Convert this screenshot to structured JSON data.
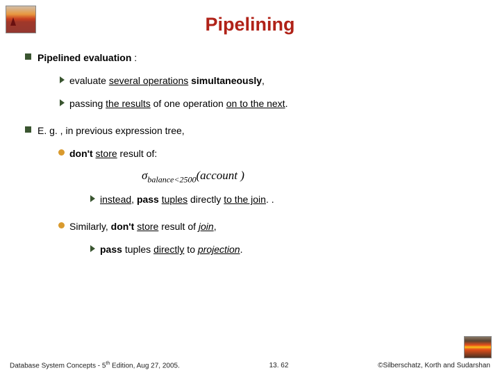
{
  "title_color": "#b02218",
  "title": "Pipelining",
  "bullets": {
    "b1_strong": "Pipelined evaluation",
    "b1_tail": " :",
    "b1a_pre": "evaluate ",
    "b1a_ul": "several operations",
    "b1a_strong": " simultaneously",
    "b1a_tail": ", ",
    "b1b_pre": "passing ",
    "b1b_ul1": "the results",
    "b1b_mid": " of one operation ",
    "b1b_ul2": "on to the next",
    "b1b_tail": ".",
    "b2_pre": "E. g. , in previous expression tree, ",
    "b2a_strong": "don't ",
    "b2a_ul": "store",
    "b2a_tail": " result of:",
    "formula_op": "σ",
    "formula_sub": "balance<2500",
    "formula_arg": "(account )",
    "b2b_ul": "instead",
    "b2b_mid1": ", ",
    "b2b_strong": "pass ",
    "b2b_ul2": "tuples",
    "b2b_mid2": " directly ",
    "b2b_ul3": "to the join",
    "b2b_tail": ". .",
    "b2c_pre": "Similarly, ",
    "b2c_strong": "don't ",
    "b2c_ul": "store",
    "b2c_mid": " result of ",
    "b2c_ul2": "join",
    "b2c_tail": ",",
    "b2d_strong": "pass ",
    "b2d_pre": "tuples ",
    "b2d_ul": "directly",
    "b2d_mid": " to ",
    "b2d_ul2": "projection",
    "b2d_tail": "."
  },
  "footer": {
    "left_pre": "Database System Concepts - 5",
    "left_sup": "th",
    "left_tail": " Edition, Aug 27,  2005.",
    "center": "13. 62",
    "right": "©Silberschatz, Korth and Sudarshan"
  }
}
